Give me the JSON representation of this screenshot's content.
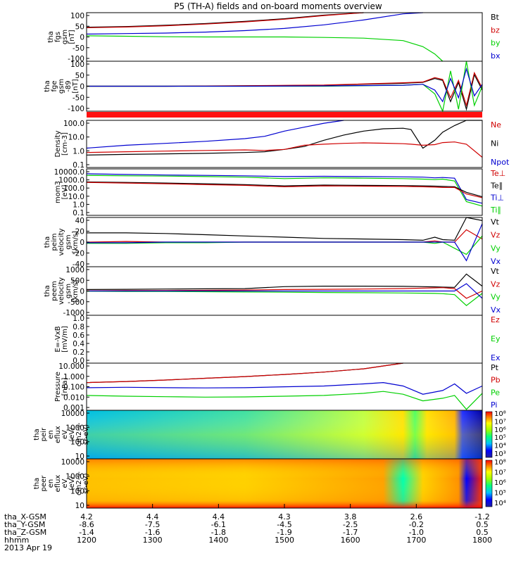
{
  "title": "P5 (TH-A) fields and on-board moments overview",
  "date": "2013 Apr 19",
  "orbit_labels": [
    "tha_X-GSM",
    "tha_Y-GSM",
    "tha_Z-GSM",
    "hhmm"
  ],
  "orbit_rows": [
    [
      "4.2",
      "4.4",
      "4.4",
      "4.3",
      "3.8",
      "2.6",
      "-1.2"
    ],
    [
      "-8.6",
      "-7.5",
      "-6.1",
      "-4.5",
      "-2.5",
      "-0.2",
      "0.5"
    ],
    [
      "-1.4",
      "-1.6",
      "-1.8",
      "-1.9",
      "-1.7",
      "-1.0",
      "0.5"
    ],
    [
      "1200",
      "1300",
      "1400",
      "1500",
      "1600",
      "1700",
      "1800"
    ]
  ],
  "colors": {
    "black": "#000000",
    "red": "#d00000",
    "green": "#00d000",
    "blue": "#0000d0"
  },
  "chart_data": [
    {
      "id": "fgs",
      "type": "line",
      "ylabel": [
        "tha",
        "fgs",
        "gsm",
        "[nT]"
      ],
      "ticks": [
        "100",
        "50",
        "0",
        "-50",
        "-100"
      ],
      "ylim": [
        -100,
        100
      ],
      "legend": [
        {
          "name": "Bt",
          "color": "black"
        },
        {
          "name": "bz",
          "color": "red"
        },
        {
          "name": "by",
          "color": "green"
        },
        {
          "name": "bx",
          "color": "blue"
        }
      ],
      "x": [
        0,
        0.1,
        0.2,
        0.3,
        0.4,
        0.5,
        0.6,
        0.7,
        0.8,
        0.85,
        0.88,
        0.9,
        0.95,
        1.0
      ],
      "series": [
        {
          "name": "Bt",
          "color": "black",
          "values": [
            40,
            43,
            48,
            55,
            64,
            75,
            90,
            100,
            null,
            null,
            null,
            null,
            null,
            null
          ]
        },
        {
          "name": "bz",
          "color": "red",
          "values": [
            38,
            41,
            46,
            53,
            62,
            73,
            88,
            100,
            null,
            null,
            null,
            null,
            null,
            null
          ]
        },
        {
          "name": "by",
          "color": "green",
          "values": [
            5,
            3,
            1,
            0,
            0,
            0,
            -2,
            -5,
            -15,
            -40,
            -70,
            -100,
            null,
            null
          ]
        },
        {
          "name": "bx",
          "color": "blue",
          "values": [
            12,
            14,
            16,
            20,
            26,
            35,
            50,
            70,
            95,
            100,
            null,
            null,
            null,
            null
          ]
        }
      ]
    },
    {
      "id": "fge",
      "type": "line",
      "ylabel": [
        "tha",
        "fge",
        "gsm",
        "-89",
        "[nT]"
      ],
      "ticks": [
        "100",
        "50",
        "0",
        "-50",
        "-100"
      ],
      "ylim": [
        -130,
        130
      ],
      "legend": [],
      "x": [
        0,
        0.2,
        0.4,
        0.6,
        0.8,
        0.85,
        0.88,
        0.9,
        0.92,
        0.94,
        0.96,
        0.98,
        1.0
      ],
      "series": [
        {
          "name": "Bt",
          "color": "black",
          "values": [
            0,
            0,
            2,
            5,
            15,
            20,
            40,
            30,
            -80,
            20,
            -120,
            60,
            -20
          ]
        },
        {
          "name": "bz",
          "color": "red",
          "values": [
            0,
            0,
            3,
            6,
            18,
            22,
            45,
            35,
            -60,
            30,
            -100,
            70,
            -10
          ]
        },
        {
          "name": "by",
          "color": "green",
          "values": [
            0,
            0,
            0,
            0,
            5,
            10,
            -40,
            -130,
            80,
            -120,
            130,
            -100,
            0
          ]
        },
        {
          "name": "bx",
          "color": "blue",
          "values": [
            0,
            0,
            0,
            2,
            5,
            10,
            -20,
            -80,
            40,
            -60,
            90,
            -50,
            10
          ]
        }
      ]
    },
    {
      "id": "density",
      "type": "line",
      "log": true,
      "ylabel": [
        "Density",
        "[cm-3]"
      ],
      "ticks": [
        "100.0",
        "10.0",
        "1.0",
        "0.1"
      ],
      "ylim": [
        0.05,
        200
      ],
      "legend": [
        {
          "name": "Ne",
          "color": "red"
        },
        {
          "name": "Ni",
          "color": "black"
        },
        {
          "name": "Npot",
          "color": "blue"
        }
      ],
      "x": [
        0,
        0.1,
        0.2,
        0.3,
        0.4,
        0.45,
        0.5,
        0.55,
        0.6,
        0.65,
        0.7,
        0.75,
        0.8,
        0.82,
        0.85,
        0.88,
        0.9,
        0.93,
        0.96,
        1.0
      ],
      "series": [
        {
          "name": "Ni",
          "color": "black",
          "values": [
            0.45,
            0.5,
            0.55,
            0.6,
            0.7,
            0.8,
            1.2,
            2,
            6,
            15,
            30,
            45,
            50,
            40,
            1.5,
            6,
            25,
            80,
            200,
            200
          ]
        },
        {
          "name": "Ne",
          "color": "red",
          "values": [
            0.7,
            0.8,
            0.9,
            1.0,
            1.1,
            1.0,
            1.2,
            2.5,
            3,
            3.5,
            3.8,
            3.6,
            3.3,
            3.0,
            2.5,
            2.8,
            4.0,
            4.5,
            3,
            0.3
          ]
        },
        {
          "name": "Npot",
          "color": "blue",
          "values": [
            1.5,
            2.5,
            3.5,
            5,
            8,
            12,
            30,
            60,
            120,
            200,
            null,
            null,
            null,
            null,
            null,
            null,
            null,
            null,
            null,
            null
          ]
        }
      ]
    },
    {
      "id": "mom",
      "type": "line",
      "log": true,
      "ylabel": [
        "mom3",
        "[eV]"
      ],
      "ticks": [
        "10000.0",
        "1000.0",
        "100.0",
        "10.0",
        "1.0",
        "0.1"
      ],
      "ylim": [
        0.1,
        10000
      ],
      "legend": [
        {
          "name": "Te⊥",
          "color": "red"
        },
        {
          "name": "Te∥",
          "color": "black"
        },
        {
          "name": "Ti⊥",
          "color": "blue"
        },
        {
          "name": "Ti∥",
          "color": "green"
        }
      ],
      "x": [
        0,
        0.1,
        0.2,
        0.3,
        0.4,
        0.5,
        0.6,
        0.7,
        0.8,
        0.85,
        0.88,
        0.9,
        0.93,
        0.96,
        1.0
      ],
      "series": [
        {
          "name": "Ti⊥",
          "color": "blue",
          "values": [
            3000,
            2500,
            2200,
            2000,
            1800,
            1500,
            1600,
            1500,
            1400,
            1300,
            1100,
            1200,
            1000,
            5,
            2
          ]
        },
        {
          "name": "Ti∥",
          "color": "green",
          "values": [
            2000,
            1800,
            1700,
            1500,
            1300,
            900,
            1100,
            1000,
            900,
            800,
            700,
            800,
            500,
            3,
            1
          ]
        },
        {
          "name": "Te∥",
          "color": "black",
          "values": [
            400,
            350,
            300,
            250,
            200,
            150,
            180,
            170,
            160,
            150,
            140,
            130,
            120,
            30,
            10
          ]
        },
        {
          "name": "Te⊥",
          "color": "red",
          "values": [
            350,
            300,
            250,
            200,
            170,
            120,
            150,
            140,
            130,
            120,
            110,
            100,
            100,
            20,
            8
          ]
        }
      ]
    },
    {
      "id": "peim",
      "type": "line",
      "ylabel": [
        "tha",
        "peim",
        "velocity",
        "gsm",
        "[km/s]"
      ],
      "ticks": [
        "40",
        "20",
        "0",
        "-20",
        "-40"
      ],
      "ylim": [
        -40,
        40
      ],
      "legend": [
        {
          "name": "Vt",
          "color": "black"
        },
        {
          "name": "Vz",
          "color": "red"
        },
        {
          "name": "Vy",
          "color": "green"
        },
        {
          "name": "Vx",
          "color": "blue"
        }
      ],
      "x": [
        0,
        0.1,
        0.2,
        0.3,
        0.4,
        0.5,
        0.6,
        0.7,
        0.8,
        0.85,
        0.88,
        0.9,
        0.93,
        0.96,
        1.0
      ],
      "series": [
        {
          "name": "Vt",
          "color": "black",
          "values": [
            15,
            15,
            14,
            12,
            10,
            8,
            6,
            5,
            4,
            3,
            8,
            4,
            3,
            40,
            35
          ]
        },
        {
          "name": "Vz",
          "color": "red",
          "values": [
            0,
            1,
            0,
            0,
            0,
            0,
            0,
            0,
            0,
            0,
            2,
            0,
            0,
            20,
            5
          ]
        },
        {
          "name": "Vy",
          "color": "green",
          "values": [
            -2,
            -2,
            -1,
            -1,
            0,
            0,
            0,
            0,
            0,
            0,
            -2,
            0,
            -10,
            -20,
            10
          ]
        },
        {
          "name": "Vx",
          "color": "blue",
          "values": [
            -1,
            -1,
            0,
            0,
            0,
            0,
            0,
            0,
            0,
            0,
            0,
            0,
            0,
            -30,
            30
          ]
        }
      ]
    },
    {
      "id": "peem",
      "type": "line",
      "ylabel": [
        "tha",
        "peem",
        "velocity",
        "gsm",
        "[km/s]"
      ],
      "ticks": [
        "1000",
        "500",
        "0",
        "-500",
        "-1000"
      ],
      "ylim": [
        -1000,
        1000
      ],
      "legend": [
        {
          "name": "Vt",
          "color": "black"
        },
        {
          "name": "Vz",
          "color": "red"
        },
        {
          "name": "Vy",
          "color": "green"
        },
        {
          "name": "Vx",
          "color": "blue"
        }
      ],
      "x": [
        0,
        0.1,
        0.2,
        0.3,
        0.4,
        0.5,
        0.6,
        0.7,
        0.8,
        0.85,
        0.88,
        0.9,
        0.93,
        0.96,
        1.0
      ],
      "series": [
        {
          "name": "Vt",
          "color": "black",
          "values": [
            60,
            70,
            80,
            90,
            100,
            180,
            200,
            200,
            190,
            180,
            170,
            160,
            150,
            700,
            200
          ]
        },
        {
          "name": "Vz",
          "color": "red",
          "values": [
            10,
            20,
            20,
            30,
            40,
            60,
            70,
            80,
            100,
            120,
            130,
            140,
            100,
            -300,
            0
          ]
        },
        {
          "name": "Vy",
          "color": "green",
          "values": [
            -10,
            -20,
            -20,
            -30,
            -40,
            -50,
            -60,
            -70,
            -80,
            -90,
            -100,
            -110,
            -150,
            -600,
            -100
          ]
        },
        {
          "name": "Vx",
          "color": "blue",
          "values": [
            0,
            0,
            0,
            0,
            0,
            0,
            0,
            0,
            0,
            0,
            0,
            0,
            0,
            300,
            -300
          ]
        }
      ]
    },
    {
      "id": "exb",
      "type": "line",
      "ylabel": [
        "E=-VxB",
        "[mV/m]"
      ],
      "ticks": [
        "1.0",
        "0.8",
        "0.6",
        "0.4",
        "0.2",
        "0.0"
      ],
      "ylim": [
        0,
        1
      ],
      "legend": [
        {
          "name": "Ez",
          "color": "red"
        },
        {
          "name": "Ey",
          "color": "green"
        },
        {
          "name": "Ex",
          "color": "blue"
        }
      ],
      "x": [],
      "series": []
    },
    {
      "id": "pressure",
      "type": "line",
      "log": true,
      "ylabel": [
        "Pressure",
        "[nPa]"
      ],
      "ticks": [
        "10.000",
        "1.000",
        "0.100",
        "0.010",
        "0.001"
      ],
      "ylim": [
        0.0008,
        80
      ],
      "legend": [
        {
          "name": "Pt",
          "color": "black"
        },
        {
          "name": "Pb",
          "color": "red"
        },
        {
          "name": "Pe",
          "color": "green"
        },
        {
          "name": "Pi",
          "color": "blue"
        }
      ],
      "x": [
        0,
        0.1,
        0.2,
        0.3,
        0.4,
        0.5,
        0.6,
        0.7,
        0.75,
        0.8,
        0.85,
        0.9,
        0.93,
        0.96,
        1.0
      ],
      "series": [
        {
          "name": "Pt",
          "color": "black",
          "values": [
            0.7,
            0.9,
            1.3,
            2,
            3,
            5,
            9,
            20,
            40,
            80,
            null,
            null,
            null,
            null,
            null
          ]
        },
        {
          "name": "Pb",
          "color": "red",
          "values": [
            0.7,
            0.9,
            1.3,
            2,
            3,
            5,
            9,
            20,
            40,
            80,
            null,
            null,
            null,
            null,
            null
          ]
        },
        {
          "name": "Pi",
          "color": "blue",
          "values": [
            0.2,
            0.22,
            0.2,
            0.19,
            0.2,
            0.25,
            0.3,
            0.5,
            0.7,
            0.3,
            0.04,
            0.1,
            0.5,
            0.05,
            0.3
          ]
        },
        {
          "name": "Pe",
          "color": "green",
          "values": [
            0.03,
            0.025,
            0.022,
            0.02,
            0.021,
            0.025,
            0.03,
            0.05,
            0.08,
            0.04,
            0.008,
            0.015,
            0.03,
            0.001,
            0.05
          ]
        }
      ]
    },
    {
      "id": "peir",
      "type": "heatmap",
      "ylabel": [
        "tha",
        "peir",
        "en",
        "eflux",
        "eV",
        "(eV/",
        "cm2-s-",
        "sr-eV)"
      ],
      "ticks": [
        "10000",
        "1000",
        "100",
        "10"
      ],
      "colorbar_ticks": [
        "10⁸",
        "10⁷",
        "10⁶",
        "10⁵",
        "10⁴",
        "10³"
      ]
    },
    {
      "id": "peer",
      "type": "heatmap",
      "ylabel": [
        "tha",
        "peer",
        "en",
        "eflux",
        "eV",
        "(eV/",
        "cm2-s-",
        "sr-eV)"
      ],
      "ticks": [
        "10000",
        "1000",
        "100",
        "10"
      ],
      "colorbar_ticks": [
        "10⁸",
        "10⁷",
        "10⁶",
        "10⁵",
        "10⁴"
      ]
    }
  ]
}
